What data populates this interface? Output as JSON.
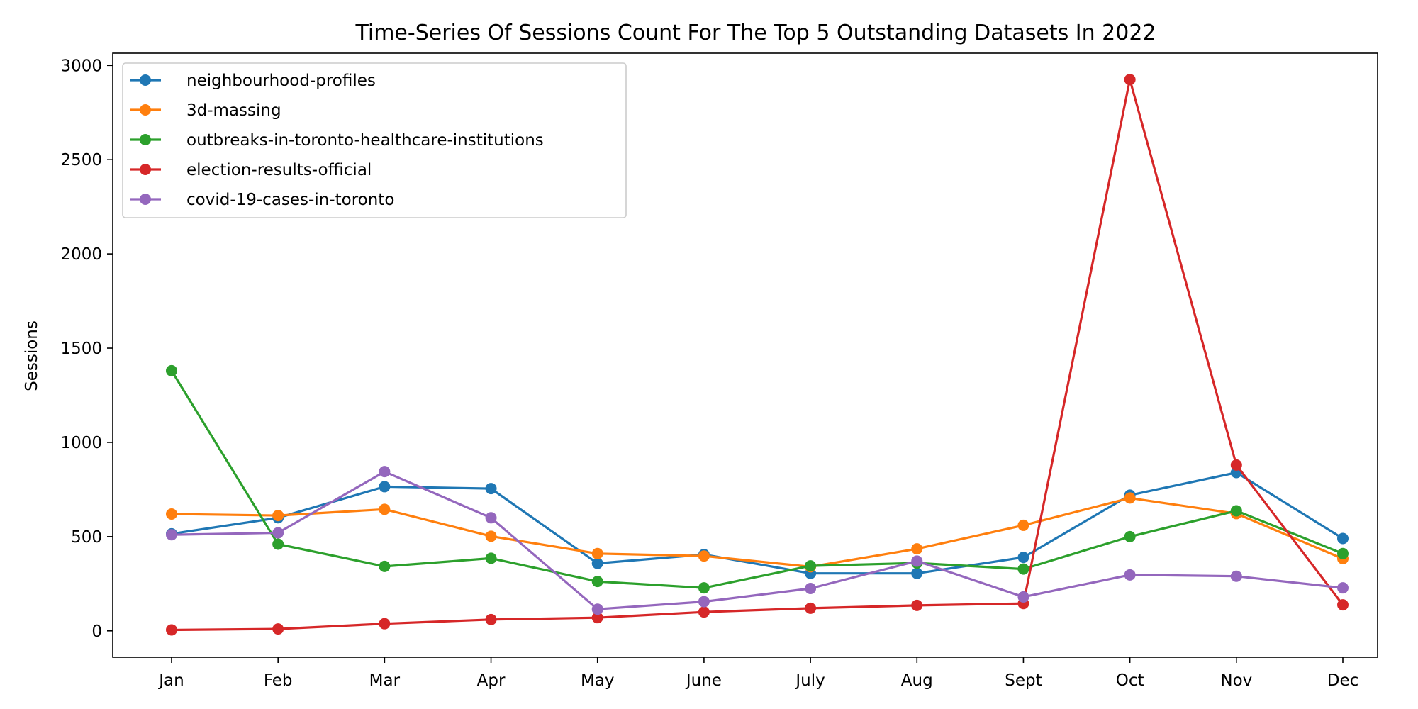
{
  "chart_data": {
    "type": "line",
    "title": "Time-Series Of Sessions Count For The Top 5 Outstanding Datasets In 2022",
    "xlabel": "",
    "ylabel": "Sessions",
    "categories": [
      "Jan",
      "Feb",
      "Mar",
      "Apr",
      "May",
      "June",
      "July",
      "Aug",
      "Sept",
      "Oct",
      "Nov",
      "Dec"
    ],
    "ylim": [
      -140,
      3065
    ],
    "yticks": [
      0,
      500,
      1000,
      1500,
      2000,
      2500,
      3000
    ],
    "grid": false,
    "legend_position": "top-left",
    "series": [
      {
        "name": "neighbourhood-profiles",
        "color": "#1f77b4",
        "values": [
          515,
          600,
          765,
          755,
          358,
          405,
          305,
          305,
          390,
          720,
          840,
          490
        ]
      },
      {
        "name": "3d-massing",
        "color": "#ff7f0e",
        "values": [
          620,
          612,
          645,
          502,
          410,
          397,
          340,
          435,
          560,
          705,
          622,
          383
        ]
      },
      {
        "name": "outbreaks-in-toronto-healthcare-institutions",
        "color": "#2ca02c",
        "values": [
          1380,
          460,
          342,
          385,
          262,
          228,
          345,
          360,
          328,
          500,
          637,
          410
        ]
      },
      {
        "name": "election-results-official",
        "color": "#d62728",
        "values": [
          5,
          10,
          38,
          60,
          70,
          100,
          120,
          135,
          145,
          2925,
          880,
          138
        ]
      },
      {
        "name": "covid-19-cases-in-toronto",
        "color": "#9467bd",
        "values": [
          510,
          520,
          845,
          600,
          115,
          155,
          225,
          370,
          180,
          297,
          290,
          228
        ]
      }
    ]
  }
}
